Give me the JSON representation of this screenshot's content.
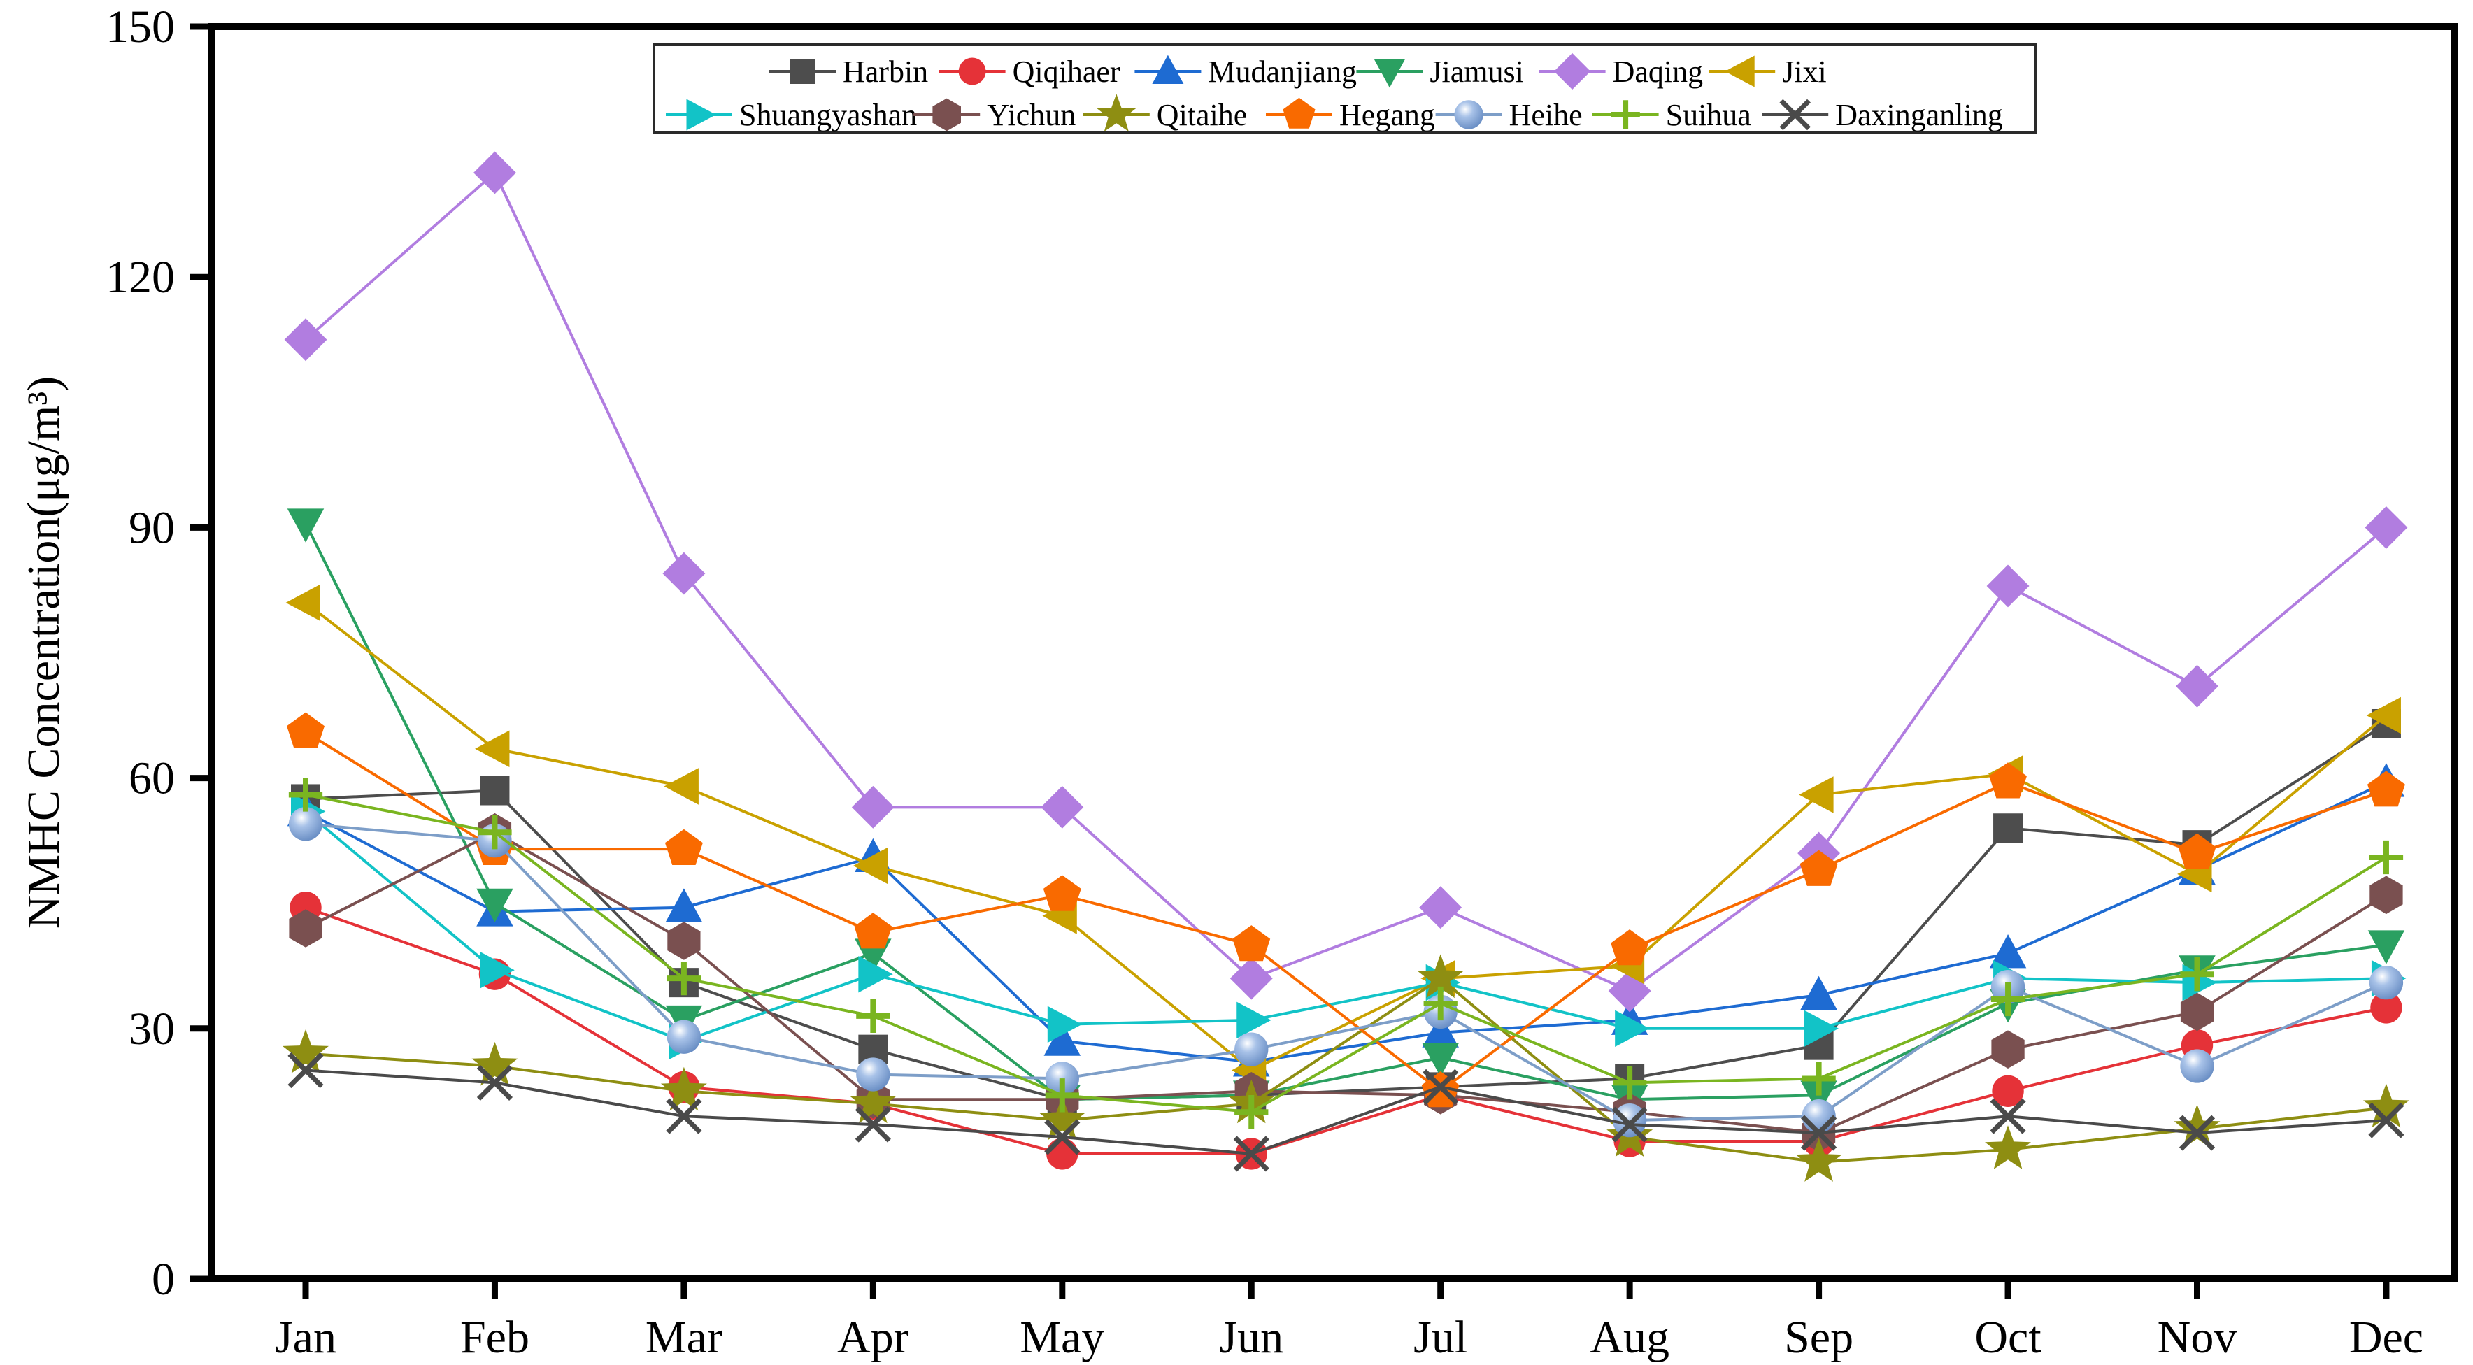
{
  "figure": {
    "background": "#ffffff",
    "frame_color": "#000000",
    "legend_border_color": "#2a2a2a"
  },
  "chart_data": {
    "type": "line",
    "title": "",
    "xlabel": "",
    "ylabel": "NMHC Concentration(μg/m³)",
    "ylim": [
      0,
      150
    ],
    "y_ticks": [
      0,
      30,
      60,
      90,
      120,
      150
    ],
    "grid": false,
    "legend_position": "top-center inside plot, boxed, 2 rows",
    "categories": [
      "Jan",
      "Feb",
      "Mar",
      "Apr",
      "May",
      "Jun",
      "Jul",
      "Aug",
      "Sep",
      "Oct",
      "Nov",
      "Dec"
    ],
    "legend_rows": [
      [
        "Harbin",
        "Qiqihaer",
        "Mudanjiang",
        "Jiamusi",
        "Daqing",
        "Jixi"
      ],
      [
        "Shuangyashan",
        "Yichun",
        "Qitaihe",
        "Hegang",
        "Heihe",
        "Suihua",
        "Daxinganling"
      ]
    ],
    "series": [
      {
        "name": "Harbin",
        "marker": "square",
        "color": "#4d4d4d",
        "values": [
          57.5,
          58.5,
          35.5,
          27.5,
          21.5,
          22,
          23,
          24,
          28,
          54,
          52,
          66.5
        ]
      },
      {
        "name": "Qiqihaer",
        "marker": "circle",
        "color": "#e53238",
        "values": [
          44.5,
          36.5,
          23,
          21,
          15,
          15,
          22,
          16.5,
          16.5,
          22.5,
          28,
          32.5
        ]
      },
      {
        "name": "Mudanjiang",
        "marker": "triangle-up",
        "color": "#1e6bd2",
        "values": [
          56,
          44,
          44.5,
          50.5,
          28.5,
          26,
          29.5,
          31,
          34,
          39,
          49,
          59.5
        ]
      },
      {
        "name": "Jiamusi",
        "marker": "triangle-down",
        "color": "#2aa061",
        "values": [
          90.5,
          45,
          31,
          39,
          21.5,
          22,
          26.5,
          21.5,
          22,
          33,
          37,
          40
        ]
      },
      {
        "name": "Daqing",
        "marker": "diamond",
        "color": "#b17de0",
        "values": [
          112.5,
          132.5,
          84.5,
          56.5,
          56.5,
          36,
          44.5,
          34.5,
          51,
          83,
          71,
          90
        ]
      },
      {
        "name": "Jixi",
        "marker": "triangle-left",
        "color": "#c9a100",
        "values": [
          81,
          63.5,
          59,
          49.5,
          43.5,
          25,
          36,
          37.5,
          58,
          60.5,
          48.5,
          67.5
        ]
      },
      {
        "name": "Shuangyashan",
        "marker": "triangle-right",
        "color": "#12c3c7",
        "values": [
          56,
          37,
          28.5,
          36.5,
          30.5,
          31,
          35.5,
          30,
          30,
          36,
          35.5,
          36
        ]
      },
      {
        "name": "Yichun",
        "marker": "hexagon",
        "color": "#7a5050",
        "values": [
          42,
          53.5,
          40.5,
          21.5,
          21.5,
          22.5,
          22,
          20,
          17.5,
          27.5,
          32,
          46
        ]
      },
      {
        "name": "Qitaihe",
        "marker": "star",
        "color": "#8e8e12",
        "values": [
          27,
          25.5,
          22.5,
          21,
          19,
          21,
          36,
          17,
          14,
          15.5,
          18,
          20.5
        ]
      },
      {
        "name": "Hegang",
        "marker": "pentagon",
        "color": "#f96a00",
        "values": [
          65.5,
          51.5,
          51.5,
          41.5,
          46,
          40,
          22.5,
          39.5,
          49,
          59.5,
          51,
          58.5
        ]
      },
      {
        "name": "Heihe",
        "marker": "sphere",
        "color": "#7d9ec8",
        "values": [
          54.5,
          52.5,
          29,
          24.5,
          24,
          27.5,
          32,
          19,
          19.5,
          35,
          25.5,
          35.5
        ]
      },
      {
        "name": "Suihua",
        "marker": "plus",
        "color": "#7ab520",
        "values": [
          58,
          53.5,
          36,
          31.5,
          22,
          20,
          33,
          23.5,
          24,
          33.5,
          36.5,
          50.5
        ]
      },
      {
        "name": "Daxinganling",
        "marker": "x",
        "color": "#4a4a4a",
        "values": [
          25,
          23.5,
          19.5,
          18.5,
          17,
          15,
          23,
          18.5,
          17.5,
          19.5,
          17.5,
          19
        ]
      }
    ]
  }
}
